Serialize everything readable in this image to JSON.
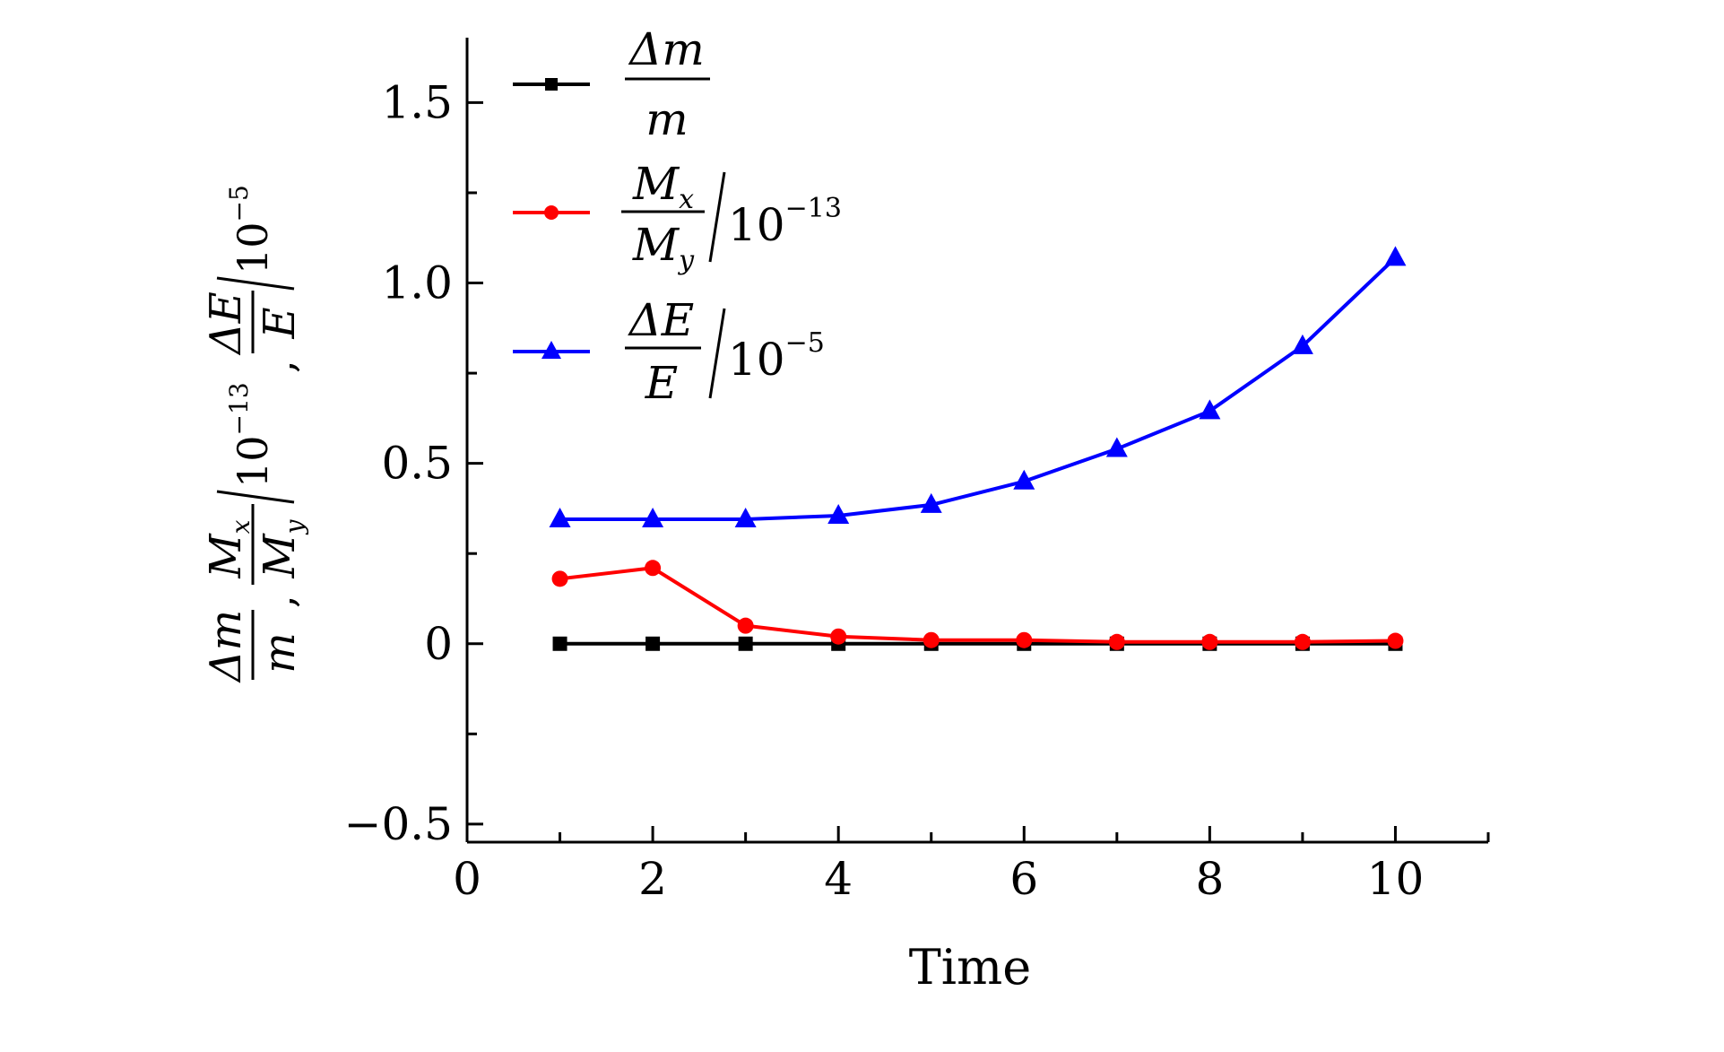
{
  "chart_data": {
    "type": "line",
    "title": "",
    "xlabel": "Time",
    "ylabel": {
      "dm": "Δm",
      "m": "m",
      "mx": "M",
      "mx_sub": "x",
      "my": "M",
      "my_sub": "y",
      "scale1": "10",
      "scale1_exp": "−13",
      "de": "ΔE",
      "e": "E",
      "scale2": "10",
      "scale2_exp": "−5",
      "comma": ","
    },
    "xlim": [
      0,
      11
    ],
    "ylim": [
      -0.55,
      1.68
    ],
    "xticks": [
      0,
      2,
      4,
      6,
      8,
      10
    ],
    "xtick_labels": [
      "0",
      "2",
      "4",
      "6",
      "8",
      "10"
    ],
    "yticks": [
      -0.5,
      0,
      0.5,
      1.0,
      1.5
    ],
    "ytick_labels": [
      "−0.5",
      "0",
      "0.5",
      "1.0",
      "1.5"
    ],
    "x": [
      1,
      2,
      3,
      4,
      5,
      6,
      7,
      8,
      9,
      10
    ],
    "series": [
      {
        "name": "Δm/m",
        "legend": {
          "num": "Δm",
          "den": "m",
          "scale": "",
          "scale_exp": ""
        },
        "color": "#000000",
        "marker": "square",
        "values": [
          0,
          0,
          0,
          0,
          0,
          0,
          0,
          0,
          0,
          0
        ]
      },
      {
        "name": "Mx/My / 10^-13",
        "legend": {
          "num": "M",
          "num_sub": "x",
          "den": "M",
          "den_sub": "y",
          "scale": "10",
          "scale_exp": "−13"
        },
        "color": "#ff0000",
        "marker": "circle",
        "values": [
          0.18,
          0.21,
          0.05,
          0.02,
          0.01,
          0.01,
          0.005,
          0.005,
          0.005,
          0.008
        ]
      },
      {
        "name": "ΔE/E / 10^-5",
        "legend": {
          "num": "ΔE",
          "den": "E",
          "scale": "10",
          "scale_exp": "−5"
        },
        "color": "#0000ff",
        "marker": "triangle",
        "values": [
          0.345,
          0.345,
          0.345,
          0.355,
          0.385,
          0.45,
          0.54,
          0.645,
          0.825,
          1.07
        ]
      }
    ],
    "legend_position": "top-left"
  }
}
